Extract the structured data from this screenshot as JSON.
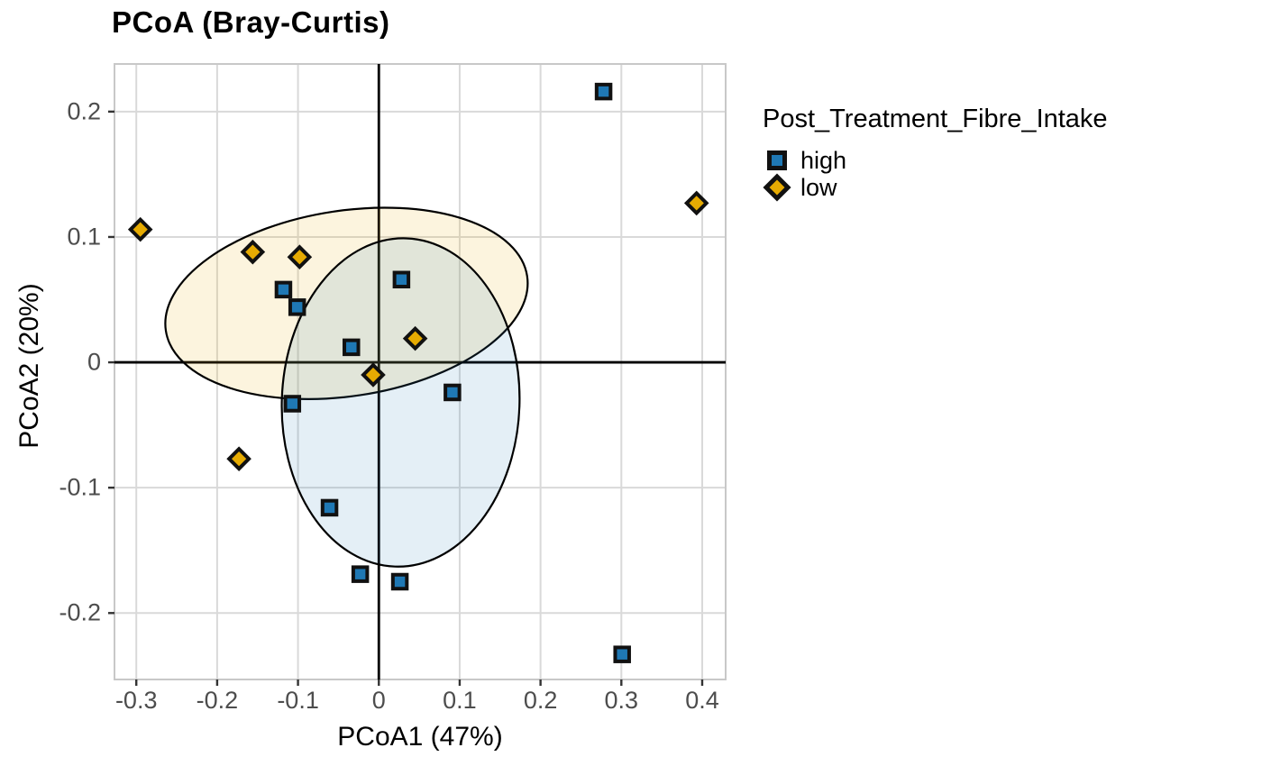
{
  "chart_data": {
    "type": "scatter",
    "title": "PCoA (Bray-Curtis)",
    "xlabel": "PCoA1 (47%)",
    "ylabel": "PCoA2 (20%)",
    "xlim": [
      -0.327,
      0.429
    ],
    "ylim": [
      -0.253,
      0.238
    ],
    "x_ticks": [
      -0.3,
      -0.2,
      -0.1,
      0,
      0.1,
      0.2,
      0.3,
      0.4
    ],
    "x_tick_labels": [
      "-0.3",
      "-0.2",
      "-0.1",
      "0",
      "0.1",
      "0.2",
      "0.3",
      "0.4"
    ],
    "y_ticks": [
      0.2,
      0.1,
      0,
      -0.1,
      -0.2
    ],
    "y_tick_labels": [
      "0.2",
      "0.1",
      "0",
      "-0.1",
      "-0.2"
    ],
    "grid": true,
    "zero_lines": true,
    "legend": {
      "title": "Post_Treatment_Fibre_Intake",
      "position": "right",
      "items": [
        {
          "label": "high",
          "marker": "square",
          "color": "#1F78B4"
        },
        {
          "label": "low",
          "marker": "diamond",
          "color": "#E6AB02"
        }
      ]
    },
    "series": [
      {
        "name": "high",
        "marker": "square",
        "color": "#1F78B4",
        "points": [
          [
            0.278,
            0.216
          ],
          [
            -0.118,
            0.058
          ],
          [
            -0.101,
            0.044
          ],
          [
            0.028,
            0.066
          ],
          [
            -0.034,
            0.012
          ],
          [
            -0.107,
            -0.033
          ],
          [
            0.091,
            -0.024
          ],
          [
            -0.061,
            -0.116
          ],
          [
            -0.023,
            -0.169
          ],
          [
            0.026,
            -0.175
          ],
          [
            0.301,
            -0.233
          ]
        ]
      },
      {
        "name": "low",
        "marker": "diamond",
        "color": "#E6AB02",
        "points": [
          [
            -0.295,
            0.106
          ],
          [
            -0.156,
            0.088
          ],
          [
            -0.098,
            0.084
          ],
          [
            0.045,
            0.019
          ],
          [
            -0.007,
            -0.01
          ],
          [
            0.393,
            0.127
          ],
          [
            -0.173,
            -0.077
          ]
        ]
      }
    ],
    "ellipses": [
      {
        "group": "low",
        "cx": -0.04,
        "cy": 0.047,
        "rx": 0.226,
        "ry": 0.074,
        "angle_deg": -8.6,
        "fill": "rgba(230,171,2,0.13)",
        "stroke": "#000000"
      },
      {
        "group": "high",
        "cx": 0.027,
        "cy": -0.032,
        "rx": 0.147,
        "ry": 0.131,
        "angle_deg": 2,
        "fill": "rgba(31,120,180,0.12)",
        "stroke": "#000000"
      }
    ],
    "style": {
      "grid_color": "#d9d9d9",
      "panel_border_color": "#c8c8c8",
      "zero_line_color": "#000000",
      "tick_color": "#333333",
      "tick_label_color": "#4d4d4d",
      "marker_outline_color": "#111111",
      "background": "#ffffff"
    }
  }
}
